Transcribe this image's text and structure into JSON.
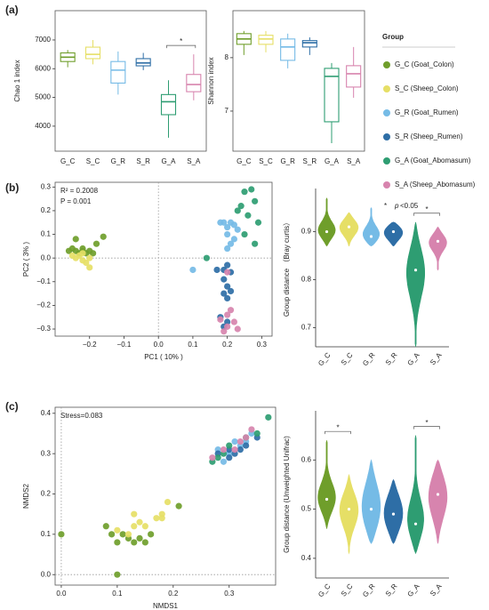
{
  "legend": {
    "title": "Group",
    "entries": [
      {
        "label": "G_C (Goat_Colon)",
        "color": "#6f9e2b"
      },
      {
        "label": "S_C (Sheep_Colon)",
        "color": "#e6df66"
      },
      {
        "label": "G_R (Goat_Rumen)",
        "color": "#75bbe6"
      },
      {
        "label": "S_R (Sheep_Rumen)",
        "color": "#2e6ea6"
      },
      {
        "label": "G_A (Goat_Abomasum)",
        "color": "#2e9d72"
      },
      {
        "label": "S_A (Sheep_Abomasum)",
        "color": "#d784ae"
      }
    ],
    "note_symbol": "*",
    "note_italic": "p",
    "note_text": "<0.05"
  },
  "chart_data": [
    {
      "type": "box",
      "panel": "(a)",
      "y_label": "Chao 1 index",
      "categories": [
        "G_C",
        "S_C",
        "G_R",
        "S_R",
        "G_A",
        "S_A"
      ],
      "colors": [
        "#6f9e2b",
        "#e6df66",
        "#75bbe6",
        "#2e6ea6",
        "#2e9d72",
        "#d784ae"
      ],
      "boxes": [
        {
          "min": 6050,
          "q1": 6250,
          "median": 6400,
          "q3": 6550,
          "max": 6650
        },
        {
          "min": 6150,
          "q1": 6350,
          "median": 6500,
          "q3": 6750,
          "max": 7000
        },
        {
          "min": 5100,
          "q1": 5500,
          "median": 5950,
          "q3": 6250,
          "max": 6600
        },
        {
          "min": 5950,
          "q1": 6100,
          "median": 6200,
          "q3": 6350,
          "max": 6550
        },
        {
          "min": 3600,
          "q1": 4400,
          "median": 4850,
          "q3": 5100,
          "max": 5600
        },
        {
          "min": 4900,
          "q1": 5200,
          "median": 5450,
          "q3": 5800,
          "max": 6500
        }
      ],
      "ylim": [
        3130,
        8020
      ],
      "yticks": [
        4000,
        5000,
        6000,
        7000
      ],
      "significance": [
        {
          "pair": [
            "G_A",
            "S_A"
          ],
          "label": "*"
        }
      ]
    },
    {
      "type": "box",
      "y_label": "Shannon index",
      "categories": [
        "G_C",
        "S_C",
        "G_R",
        "S_R",
        "G_A",
        "S_A"
      ],
      "colors": [
        "#6f9e2b",
        "#e6df66",
        "#75bbe6",
        "#2e6ea6",
        "#2e9d72",
        "#d784ae"
      ],
      "boxes": [
        {
          "min": 8.05,
          "q1": 8.25,
          "median": 8.35,
          "q3": 8.45,
          "max": 8.5
        },
        {
          "min": 8.1,
          "q1": 8.25,
          "median": 8.35,
          "q3": 8.42,
          "max": 8.5
        },
        {
          "min": 7.8,
          "q1": 7.95,
          "median": 8.2,
          "q3": 8.35,
          "max": 8.45
        },
        {
          "min": 8.05,
          "q1": 8.2,
          "median": 8.28,
          "q3": 8.32,
          "max": 8.38
        },
        {
          "min": 6.4,
          "q1": 6.8,
          "median": 7.65,
          "q3": 7.8,
          "max": 7.9
        },
        {
          "min": 7.25,
          "q1": 7.45,
          "median": 7.7,
          "q3": 7.85,
          "max": 8.2
        }
      ],
      "ylim": [
        6.25,
        8.88
      ],
      "yticks": [
        7,
        8
      ]
    },
    {
      "type": "scatter",
      "panel": "(b)",
      "x_label": "PC1 ( 10% )",
      "y_label": "PC2 ( 3% )",
      "annotations": [
        "R² = 0.2008",
        "P = 0.001"
      ],
      "zero_lines": true,
      "xlim": [
        -0.3,
        0.33
      ],
      "xticks": [
        {
          "value": -0.2,
          "label": "−0.2"
        },
        {
          "value": -0.1,
          "label": "−0.1"
        },
        {
          "value": 0,
          "label": "0.0"
        },
        0.1,
        0.2,
        0.3
      ],
      "ylim": [
        -0.33,
        0.32
      ],
      "yticks": [
        {
          "value": -0.3,
          "label": "−0.3"
        },
        {
          "value": -0.2,
          "label": "−0.2"
        },
        {
          "value": -0.1,
          "label": "−0.1"
        },
        {
          "value": 0,
          "label": "0.0"
        },
        0.1,
        0.2,
        0.3
      ],
      "series": [
        {
          "color": "#6f9e2b",
          "x": [
            -0.26,
            -0.25,
            -0.24,
            -0.23,
            -0.22,
            -0.21,
            -0.2,
            -0.19,
            -0.18,
            -0.16,
            -0.24,
            -0.22
          ],
          "y": [
            0.03,
            0.04,
            0.03,
            0.02,
            0.03,
            0.02,
            0.03,
            0.02,
            0.06,
            0.09,
            0.08,
            0.04
          ]
        },
        {
          "color": "#e6df66",
          "x": [
            -0.25,
            -0.24,
            -0.23,
            -0.22,
            -0.21,
            -0.2,
            -0.22,
            -0.2
          ],
          "y": [
            0.01,
            0,
            0.01,
            -0.01,
            -0.02,
            -0.04,
            0.02,
            0
          ]
        },
        {
          "color": "#75bbe6",
          "x": [
            0.1,
            0.18,
            0.19,
            0.2,
            0.21,
            0.22,
            0.2,
            0.22,
            0.21,
            0.2,
            0.23
          ],
          "y": [
            -0.05,
            0.15,
            0.15,
            0.13,
            0.15,
            0.14,
            0.1,
            0.08,
            0.06,
            0.04,
            0.12
          ]
        },
        {
          "color": "#2e6ea6",
          "x": [
            0.17,
            0.19,
            0.2,
            0.21,
            0.19,
            0.2,
            0.19,
            0.2,
            0.21,
            0.18,
            0.2,
            0.19
          ],
          "y": [
            -0.05,
            -0.05,
            -0.03,
            -0.06,
            -0.09,
            -0.12,
            -0.15,
            -0.17,
            -0.14,
            -0.25,
            -0.27,
            -0.29
          ]
        },
        {
          "color": "#2e9d72",
          "x": [
            0.14,
            0.24,
            0.25,
            0.27,
            0.28,
            0.29,
            0.26,
            0.23,
            0.28,
            0.25
          ],
          "y": [
            0,
            0.22,
            0.28,
            0.29,
            0.24,
            0.15,
            0.18,
            0.2,
            0.06,
            0.1
          ]
        },
        {
          "color": "#d784ae",
          "x": [
            0.18,
            0.19,
            0.2,
            0.21,
            0.22,
            0.2,
            0.23,
            0.2
          ],
          "y": [
            -0.26,
            -0.31,
            -0.29,
            -0.22,
            -0.27,
            -0.24,
            -0.3,
            -0.06
          ]
        }
      ]
    },
    {
      "type": "violin",
      "y_label": "Group distance （Bray curtis）",
      "categories": [
        "G_C",
        "S_C",
        "G_R",
        "S_R",
        "G_A",
        "S_A"
      ],
      "colors": [
        "#6f9e2b",
        "#e6df66",
        "#75bbe6",
        "#2e6ea6",
        "#2e9d72",
        "#d784ae"
      ],
      "boxes": [
        {
          "min": 0.87,
          "q1": 0.89,
          "median": 0.9,
          "q3": 0.92,
          "max": 0.97
        },
        {
          "min": 0.87,
          "q1": 0.89,
          "median": 0.91,
          "q3": 0.92,
          "max": 0.94
        },
        {
          "min": 0.87,
          "q1": 0.88,
          "median": 0.89,
          "q3": 0.91,
          "max": 0.95
        },
        {
          "min": 0.87,
          "q1": 0.88,
          "median": 0.9,
          "q3": 0.91,
          "max": 0.92
        },
        {
          "min": 0.66,
          "q1": 0.78,
          "median": 0.82,
          "q3": 0.87,
          "max": 0.92
        },
        {
          "min": 0.82,
          "q1": 0.86,
          "median": 0.88,
          "q3": 0.89,
          "max": 0.91
        }
      ],
      "ylim": [
        0.66,
        0.99
      ],
      "yticks": [
        0.7,
        0.8,
        0.9
      ],
      "significance": [
        {
          "pair": [
            "G_A",
            "S_A"
          ],
          "label": "*"
        }
      ]
    },
    {
      "type": "scatter",
      "panel": "(c)",
      "x_label": "NMDS1",
      "y_label": "NMDS2",
      "annotations": [
        "Stress=0.083"
      ],
      "zero_lines": true,
      "xlim": [
        -0.011,
        0.383
      ],
      "xticks": [
        {
          "value": 0,
          "label": "0.0"
        },
        0.1,
        0.2,
        0.3
      ],
      "ylim": [
        -0.026,
        0.415
      ],
      "yticks": [
        {
          "value": 0,
          "label": "0.0"
        },
        0.1,
        0.2,
        0.3,
        0.4
      ],
      "series": [
        {
          "color": "#6f9e2b",
          "x": [
            0,
            0.1,
            0.08,
            0.09,
            0.1,
            0.12,
            0.13,
            0.14,
            0.15,
            0.16,
            0.21,
            0.11
          ],
          "y": [
            0.1,
            0,
            0.12,
            0.1,
            0.08,
            0.09,
            0.08,
            0.09,
            0.08,
            0.1,
            0.17,
            0.1
          ]
        },
        {
          "color": "#e6df66",
          "x": [
            0.1,
            0.12,
            0.13,
            0.14,
            0.15,
            0.17,
            0.18,
            0.19,
            0.18,
            0.13
          ],
          "y": [
            0.11,
            0.1,
            0.12,
            0.13,
            0.12,
            0.14,
            0.15,
            0.18,
            0.14,
            0.15
          ]
        },
        {
          "color": "#75bbe6",
          "x": [
            0.28,
            0.3,
            0.31,
            0.32,
            0.33,
            0.34,
            0.29
          ],
          "y": [
            0.31,
            0.3,
            0.33,
            0.32,
            0.33,
            0.35,
            0.28
          ]
        },
        {
          "color": "#2e6ea6",
          "x": [
            0.28,
            0.3,
            0.31,
            0.32,
            0.33,
            0.3,
            0.35
          ],
          "y": [
            0.3,
            0.31,
            0.3,
            0.31,
            0.32,
            0.29,
            0.34
          ]
        },
        {
          "color": "#2e9d72",
          "x": [
            0.27,
            0.28,
            0.29,
            0.3,
            0.37,
            0.33,
            0.35
          ],
          "y": [
            0.28,
            0.29,
            0.3,
            0.32,
            0.39,
            0.34,
            0.35
          ]
        },
        {
          "color": "#d784ae",
          "x": [
            0.27,
            0.29,
            0.31,
            0.32,
            0.33,
            0.34
          ],
          "y": [
            0.29,
            0.31,
            0.31,
            0.33,
            0.34,
            0.36
          ]
        }
      ]
    },
    {
      "type": "violin",
      "y_label": "Group distance (Unweighted Unifrac)",
      "categories": [
        "G_C",
        "S_C",
        "G_R",
        "S_R",
        "G_A",
        "S_A"
      ],
      "colors": [
        "#6f9e2b",
        "#e6df66",
        "#75bbe6",
        "#2e6ea6",
        "#2e9d72",
        "#d784ae"
      ],
      "boxes": [
        {
          "min": 0.46,
          "q1": 0.49,
          "median": 0.52,
          "q3": 0.54,
          "max": 0.64
        },
        {
          "min": 0.41,
          "q1": 0.47,
          "median": 0.5,
          "q3": 0.53,
          "max": 0.57
        },
        {
          "min": 0.43,
          "q1": 0.46,
          "median": 0.5,
          "q3": 0.55,
          "max": 0.6
        },
        {
          "min": 0.43,
          "q1": 0.46,
          "median": 0.49,
          "q3": 0.53,
          "max": 0.56
        },
        {
          "min": 0.41,
          "q1": 0.44,
          "median": 0.47,
          "q3": 0.51,
          "max": 0.65
        },
        {
          "min": 0.43,
          "q1": 0.48,
          "median": 0.53,
          "q3": 0.56,
          "max": 0.6
        }
      ],
      "ylim": [
        0.36,
        0.7
      ],
      "yticks": [
        0.4,
        0.5,
        0.6
      ],
      "significance": [
        {
          "pair": [
            "G_C",
            "S_C"
          ],
          "label": "*"
        },
        {
          "pair": [
            "G_A",
            "S_A"
          ],
          "label": "*"
        }
      ]
    }
  ]
}
